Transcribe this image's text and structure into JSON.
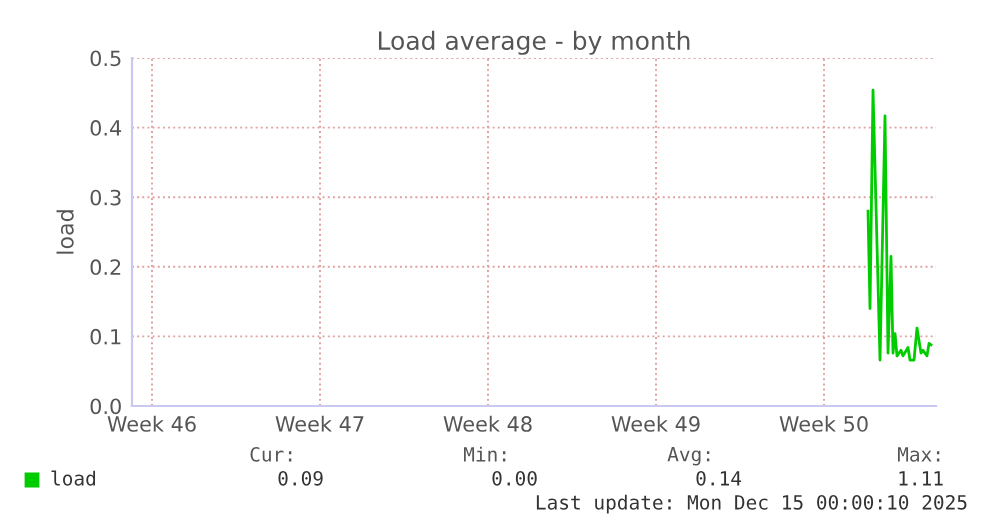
{
  "chart_data": {
    "type": "line",
    "title": "Load average - by month",
    "ylabel": "load",
    "x": [
      "2025-12-12T04:00",
      "2025-12-12T06:00",
      "2025-12-12T09:00",
      "2025-12-12T16:00",
      "2025-12-12T21:00",
      "2025-12-13T00:00",
      "2025-12-13T03:00",
      "2025-12-13T05:00",
      "2025-12-13T07:00",
      "2025-12-13T09:00",
      "2025-12-13T13:00",
      "2025-12-13T15:00",
      "2025-12-13T20:00",
      "2025-12-13T22:00",
      "2025-12-14T02:00",
      "2025-12-14T05:00",
      "2025-12-14T09:00",
      "2025-12-14T11:00",
      "2025-12-14T15:00",
      "2025-12-14T17:00",
      "2025-12-14T19:00"
    ],
    "series": [
      {
        "name": "load",
        "color": "#00cc00",
        "values": [
          0.28,
          0.14,
          0.454,
          0.066,
          0.417,
          0.076,
          0.215,
          0.076,
          0.104,
          0.072,
          0.08,
          0.072,
          0.084,
          0.066,
          0.066,
          0.112,
          0.076,
          0.08,
          0.072,
          0.09,
          0.088
        ]
      }
    ],
    "xlim": [
      "2025-11-11T12:00",
      "2025-12-15T00:00"
    ],
    "xticks": [
      {
        "value": "2025-11-12T08:00",
        "label": "Week 46"
      },
      {
        "value": "2025-11-19T08:00",
        "label": "Week 47"
      },
      {
        "value": "2025-11-26T08:00",
        "label": "Week 48"
      },
      {
        "value": "2025-12-03T08:00",
        "label": "Week 49"
      },
      {
        "value": "2025-12-10T08:00",
        "label": "Week 50"
      }
    ],
    "ylim": [
      0,
      0.5
    ],
    "yticks": [
      {
        "value": 0,
        "label": "0.0"
      },
      {
        "value": 0.1,
        "label": "0.1"
      },
      {
        "value": 0.2,
        "label": "0.2"
      },
      {
        "value": 0.3,
        "label": "0.3"
      },
      {
        "value": 0.4,
        "label": "0.4"
      },
      {
        "value": 0.5,
        "label": "0.5"
      }
    ],
    "grid": true,
    "legend": "bottom left",
    "annotations": [
      "Cur:",
      "Min:",
      "Avg:",
      "Max:",
      "0.09",
      "0.00",
      "0.14",
      "1.11",
      "Last update: Mon Dec 15 00:00:10 2025"
    ]
  }
}
